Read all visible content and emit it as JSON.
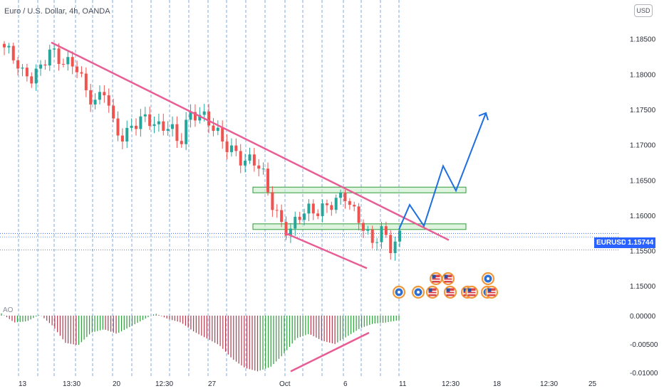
{
  "symbol_title": "Euro / U.S. Dollar, 4h, OANDA",
  "currency": "USD",
  "indicator_label": "AO",
  "price_tag": {
    "name": "EURUSD",
    "value": "1.15744"
  },
  "colors": {
    "up": "#26a69a",
    "down": "#ef5350",
    "trend": "#e95d95",
    "projection": "#1e6fe0",
    "zone_fill": "#c8ecc8",
    "zone_border": "#2e9b3a",
    "grid_dashed": "#3a7bd5",
    "ao_up": "#2e9b3a",
    "ao_down": "#b53a4e",
    "tag_bg": "#2962ff"
  },
  "chart_data": {
    "type": "candlestick",
    "title": "Euro / U.S. Dollar, 4h, OANDA",
    "interval": "4h",
    "x_tick_labels": [
      "13",
      "13:30",
      "20",
      "12:30",
      "27",
      "Oct",
      "6",
      "11",
      "12:30",
      "18",
      "12:30",
      "25"
    ],
    "y_tick_labels": [
      "1.18500",
      "1.18000",
      "1.17500",
      "1.17000",
      "1.16500",
      "1.16000",
      "1.15500",
      "1.15000"
    ],
    "ylim": [
      1.147,
      1.1885
    ],
    "current_price": 1.15744,
    "close_path": [
      1.1838,
      1.1825,
      1.18,
      1.1795,
      1.181,
      1.1835,
      1.182,
      1.1815,
      1.181,
      1.177,
      1.176,
      1.178,
      1.172,
      1.171,
      1.1728,
      1.1738,
      1.1734,
      1.1722,
      1.173,
      1.1698,
      1.174,
      1.1744,
      1.1737,
      1.172,
      1.17,
      1.169,
      1.1675,
      1.168,
      1.1665,
      1.162,
      1.159,
      1.1575,
      1.16,
      1.1608,
      1.1605,
      1.1612,
      1.162,
      1.163,
      1.1605,
      1.1585,
      1.156,
      1.158,
      1.1555,
      1.157
    ],
    "trendlines": [
      {
        "label": "descending-resistance",
        "points": [
          [
            0,
            1.1845
          ],
          [
            46,
            1.1565
          ]
        ]
      },
      {
        "label": "support-line",
        "points": [
          [
            30,
            1.1575
          ],
          [
            39,
            1.1525
          ]
        ]
      }
    ],
    "zones": [
      {
        "label": "upper-zone",
        "y_low": 1.1632,
        "y_high": 1.164
      },
      {
        "label": "lower-zone",
        "y_low": 1.158,
        "y_high": 1.1588
      }
    ],
    "projection_path": [
      1.158,
      1.1615,
      1.1585,
      1.167,
      1.1635,
      1.1745
    ],
    "economic_events": [
      "us-flag",
      "us-flag",
      "globe",
      "globe",
      "globe",
      "us-flag",
      "us-flag",
      "us-flag",
      "us-flag",
      "globe",
      "us-flag"
    ],
    "ao": {
      "ylim": [
        -0.0105,
        0.0015
      ],
      "y_tick_labels": [
        "0.00000",
        "-0.00500",
        "-0.01000"
      ],
      "values": [
        0.0004,
        -0.0012,
        -0.001,
        0.0002,
        -0.0018,
        -0.0048,
        -0.0052,
        -0.003,
        -0.0024,
        -0.0032,
        -0.002,
        -0.0008,
        0.0004,
        -0.0006,
        -0.0012,
        -0.0028,
        -0.004,
        -0.0052,
        -0.0076,
        -0.0092,
        -0.0098,
        -0.009,
        -0.0068,
        -0.004,
        -0.0032,
        -0.0044,
        -0.005,
        -0.0036,
        -0.0022,
        -0.0014,
        -0.0012,
        -0.0008
      ],
      "divergence_line": [
        [
          -0.0098,
          0
        ],
        [
          -0.003,
          1
        ]
      ]
    }
  }
}
